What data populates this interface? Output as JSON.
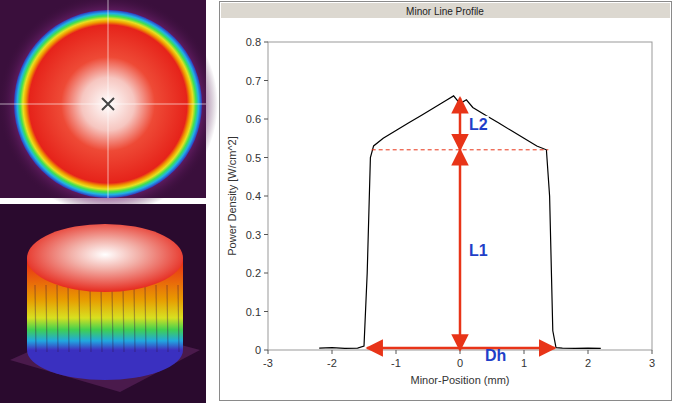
{
  "chart_data": {
    "type": "line",
    "title": "Minor Line Profile",
    "x_label": "Minor-Position (mm)",
    "y_label": "Power Density [W/cm^2]",
    "x": [
      -2.2,
      -2.0,
      -1.8,
      -1.6,
      -1.5,
      -1.45,
      -1.4,
      -1.35,
      -1.2,
      -1.0,
      -0.8,
      -0.6,
      -0.4,
      -0.2,
      -0.1,
      0,
      0.1,
      0.2,
      0.4,
      0.6,
      0.8,
      1.0,
      1.2,
      1.35,
      1.4,
      1.45,
      1.5,
      1.6,
      1.8,
      2.0,
      2.2
    ],
    "values": [
      0.005,
      0.006,
      0.004,
      0.005,
      0.01,
      0.2,
      0.5,
      0.53,
      0.55,
      0.57,
      0.59,
      0.61,
      0.63,
      0.65,
      0.66,
      0.64,
      0.65,
      0.63,
      0.61,
      0.59,
      0.57,
      0.55,
      0.53,
      0.52,
      0.4,
      0.05,
      0.006,
      0.005,
      0.004,
      0.005,
      0.004
    ],
    "color": "#000000",
    "xlim": [
      -3,
      3
    ],
    "ylim": [
      0,
      0.8
    ],
    "xticks": [
      -3,
      -2,
      -1,
      0,
      1,
      2,
      3
    ],
    "yticks": [
      0,
      0.1,
      0.2,
      0.3,
      0.4,
      0.5,
      0.6,
      0.7,
      0.8
    ],
    "grid": false,
    "reference_line": {
      "y": 0.52,
      "x0": -1.38,
      "x1": 1.38
    },
    "annotations": [
      {
        "text": "L2",
        "x": 0,
        "y0": 0.52,
        "y1": 0.655
      },
      {
        "text": "L1",
        "x": 0,
        "y0": 0,
        "y1": 0.52
      },
      {
        "text": "Dh",
        "y": 0.005,
        "x0": -1.45,
        "x1": 1.48
      }
    ]
  }
}
